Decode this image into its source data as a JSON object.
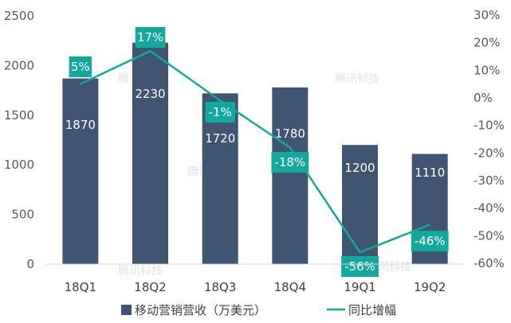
{
  "chart_data": {
    "type": "bar",
    "categories": [
      "18Q1",
      "18Q2",
      "18Q3",
      "18Q4",
      "19Q1",
      "19Q2"
    ],
    "series": [
      {
        "name": "移动营销营收（万美元）",
        "type": "bar",
        "axis": "left",
        "values": [
          1870,
          2230,
          1720,
          1780,
          1200,
          1110
        ],
        "labels": [
          "1870",
          "2230",
          "1720",
          "1780",
          "1200",
          "1110"
        ],
        "color": "#3f5571"
      },
      {
        "name": "同比增幅",
        "type": "line",
        "axis": "right",
        "values": [
          5,
          17,
          -1,
          -18,
          -56,
          -46
        ],
        "labels": [
          "5%",
          "17%",
          "-1%",
          "-18%",
          "-56%",
          "-46%"
        ],
        "color": "#13a89e"
      }
    ],
    "y_left": {
      "ylim": [
        0,
        2500
      ],
      "ticks": [
        0,
        500,
        1000,
        1500,
        2000,
        2500
      ]
    },
    "y_right": {
      "ylim": [
        -60,
        30
      ],
      "ticks": [
        30,
        20,
        10,
        0,
        -10,
        -20,
        -30,
        -40,
        -50,
        -60
      ],
      "tick_labels": [
        "30%",
        "20%",
        "10%",
        "0%",
        "-10%",
        "-20%",
        "-30%",
        "-40%",
        "-50%",
        "-60%"
      ]
    },
    "grid": false,
    "legend_position": "bottom"
  },
  "watermark": "腾讯科技"
}
